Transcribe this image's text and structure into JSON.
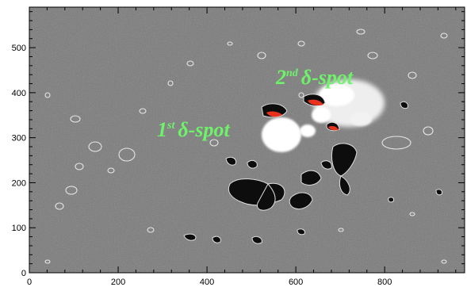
{
  "figure": {
    "x_axis": {
      "range": [
        0,
        980
      ],
      "ticks": [
        "0",
        "200",
        "400",
        "600",
        "800"
      ]
    },
    "y_axis": {
      "range": [
        0,
        590
      ],
      "ticks": [
        "0",
        "100",
        "200",
        "300",
        "400",
        "500"
      ]
    },
    "annotations": [
      {
        "id": "first",
        "ordinal": "1",
        "sup": "st",
        "text": "δ-spot"
      },
      {
        "id": "second",
        "ordinal": "2",
        "sup": "nd",
        "text": "δ-spot"
      }
    ],
    "colors": {
      "background_gray": "#7a7a7a",
      "positive_polarity": "#ffffff",
      "negative_polarity": "#0a0a0a",
      "delta_highlight": "#e8321e",
      "annotation_text": "#6ef26a"
    }
  }
}
